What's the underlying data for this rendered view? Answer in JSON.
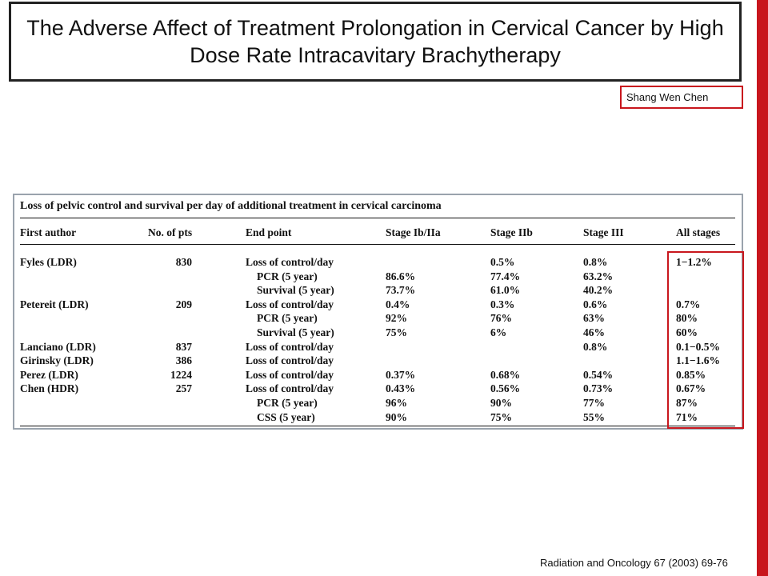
{
  "slide": {
    "title": "The Adverse Affect of Treatment Prolongation in Cervical Cancer by High Dose Rate Intracavitary Brachytherapy",
    "author": "Shang Wen Chen",
    "citation": "Radiation and Oncology 67 (2003) 69-76",
    "accent_color": "#c8161d"
  },
  "table": {
    "caption": "Loss of pelvic control and survival per day of additional treatment in cervical carcinoma",
    "headers": [
      "First author",
      "No. of pts",
      "End point",
      "Stage Ib/IIa",
      "Stage IIb",
      "Stage III",
      "All stages"
    ],
    "rows": [
      {
        "author": "Fyles (LDR)",
        "pts": "830",
        "end": "Loss of control/day",
        "s1": "",
        "s2": "0.5%",
        "s3": "0.8%",
        "all": "1−1.2%"
      },
      {
        "author": "",
        "pts": "",
        "end": "PCR (5 year)",
        "s1": "86.6%",
        "s2": "77.4%",
        "s3": "63.2%",
        "all": ""
      },
      {
        "author": "",
        "pts": "",
        "end": "Survival (5 year)",
        "s1": "73.7%",
        "s2": "61.0%",
        "s3": "40.2%",
        "all": ""
      },
      {
        "author": "Petereit (LDR)",
        "pts": "209",
        "end": "Loss of control/day",
        "s1": "0.4%",
        "s2": "0.3%",
        "s3": "0.6%",
        "all": "0.7%"
      },
      {
        "author": "",
        "pts": "",
        "end": "PCR (5 year)",
        "s1": "92%",
        "s2": "76%",
        "s3": "63%",
        "all": "80%"
      },
      {
        "author": "",
        "pts": "",
        "end": "Survival (5 year)",
        "s1": "75%",
        "s2": "6%",
        "s3": "46%",
        "all": "60%"
      },
      {
        "author": "Lanciano (LDR)",
        "pts": "837",
        "end": "Loss of control/day",
        "s1": "",
        "s2": "",
        "s3": "0.8%",
        "all": "0.1−0.5%"
      },
      {
        "author": "Girinsky (LDR)",
        "pts": "386",
        "end": "Loss of control/day",
        "s1": "",
        "s2": "",
        "s3": "",
        "all": "1.1−1.6%"
      },
      {
        "author": "Perez (LDR)",
        "pts": "1224",
        "end": "Loss of control/day",
        "s1": "0.37%",
        "s2": "0.68%",
        "s3": "0.54%",
        "all": "0.85%"
      },
      {
        "author": "Chen (HDR)",
        "pts": "257",
        "end": "Loss of control/day",
        "s1": "0.43%",
        "s2": "0.56%",
        "s3": "0.73%",
        "all": "0.67%"
      },
      {
        "author": "",
        "pts": "",
        "end": "PCR (5 year)",
        "s1": "96%",
        "s2": "90%",
        "s3": "77%",
        "all": "87%"
      },
      {
        "author": "",
        "pts": "",
        "end": "CSS (5 year)",
        "s1": "90%",
        "s2": "75%",
        "s3": "55%",
        "all": "71%"
      }
    ]
  }
}
